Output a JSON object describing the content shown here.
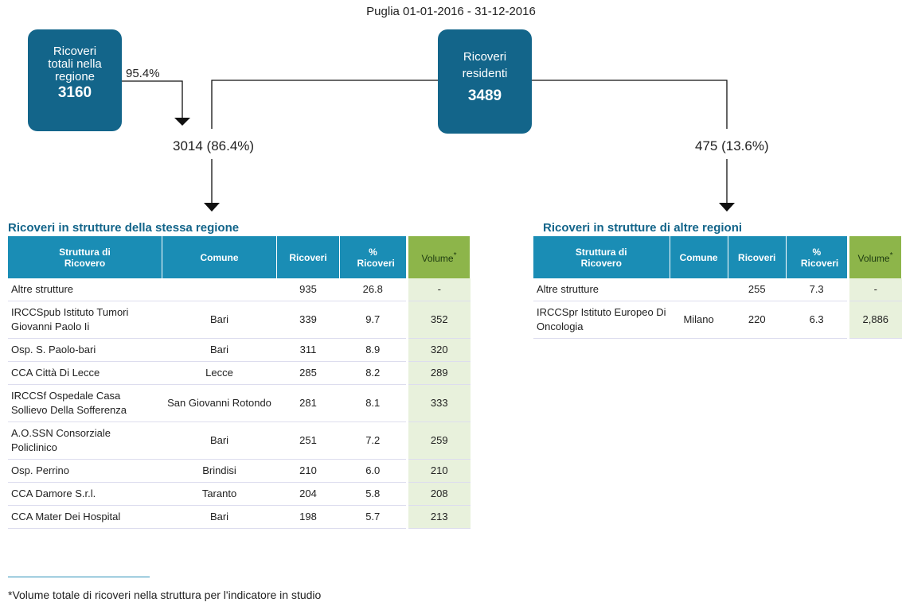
{
  "header": {
    "subtitle": "Puglia 01-01-2016 - 31-12-2016"
  },
  "flow": {
    "total_box": {
      "label": "Ricoveri totali nella regione",
      "value": "3160"
    },
    "total_share": "95.4%",
    "resident_box": {
      "label": "Ricoveri residenti",
      "value": "3489"
    },
    "same_region": "3014 (86.4%)",
    "other_regions": "475 (13.6%)"
  },
  "tables": [
    {
      "title": "Ricoveri in strutture della stessa regione",
      "headers": [
        "Struttura di Ricovero",
        "Comune",
        "Ricoveri",
        "% Ricoveri",
        "Volume"
      ],
      "header_marker": "*",
      "rows": [
        [
          "Altre strutture",
          "",
          "935",
          "26.8",
          "-"
        ],
        [
          "IRCCSpub Istituto Tumori Giovanni Paolo Ii",
          "Bari",
          "339",
          "9.7",
          "352"
        ],
        [
          "Osp. S. Paolo-bari",
          "Bari",
          "311",
          "8.9",
          "320"
        ],
        [
          "CCA Città Di Lecce",
          "Lecce",
          "285",
          "8.2",
          "289"
        ],
        [
          "IRCCSf Ospedale Casa Sollievo Della Sofferenza",
          "San Giovanni Rotondo",
          "281",
          "8.1",
          "333"
        ],
        [
          "A.O.SSN Consorziale Policlinico",
          "Bari",
          "251",
          "7.2",
          "259"
        ],
        [
          "Osp. Perrino",
          "Brindisi",
          "210",
          "6.0",
          "210"
        ],
        [
          "CCA Damore S.r.l.",
          "Taranto",
          "204",
          "5.8",
          "208"
        ],
        [
          "CCA Mater Dei Hospital",
          "Bari",
          "198",
          "5.7",
          "213"
        ]
      ]
    },
    {
      "title": "Ricoveri in strutture di altre regioni",
      "headers": [
        "Struttura di Ricovero",
        "Comune",
        "Ricoveri",
        "% Ricoveri",
        "Volume"
      ],
      "header_marker": "*",
      "rows": [
        [
          "Altre strutture",
          "",
          "255",
          "7.3",
          "-"
        ],
        [
          "IRCCSpr Istituto Europeo Di Oncologia",
          "Milano",
          "220",
          "6.3",
          "2,886"
        ]
      ]
    }
  ],
  "footnote": "*Volume totale di ricoveri nella struttura per l'indicatore in studio"
}
